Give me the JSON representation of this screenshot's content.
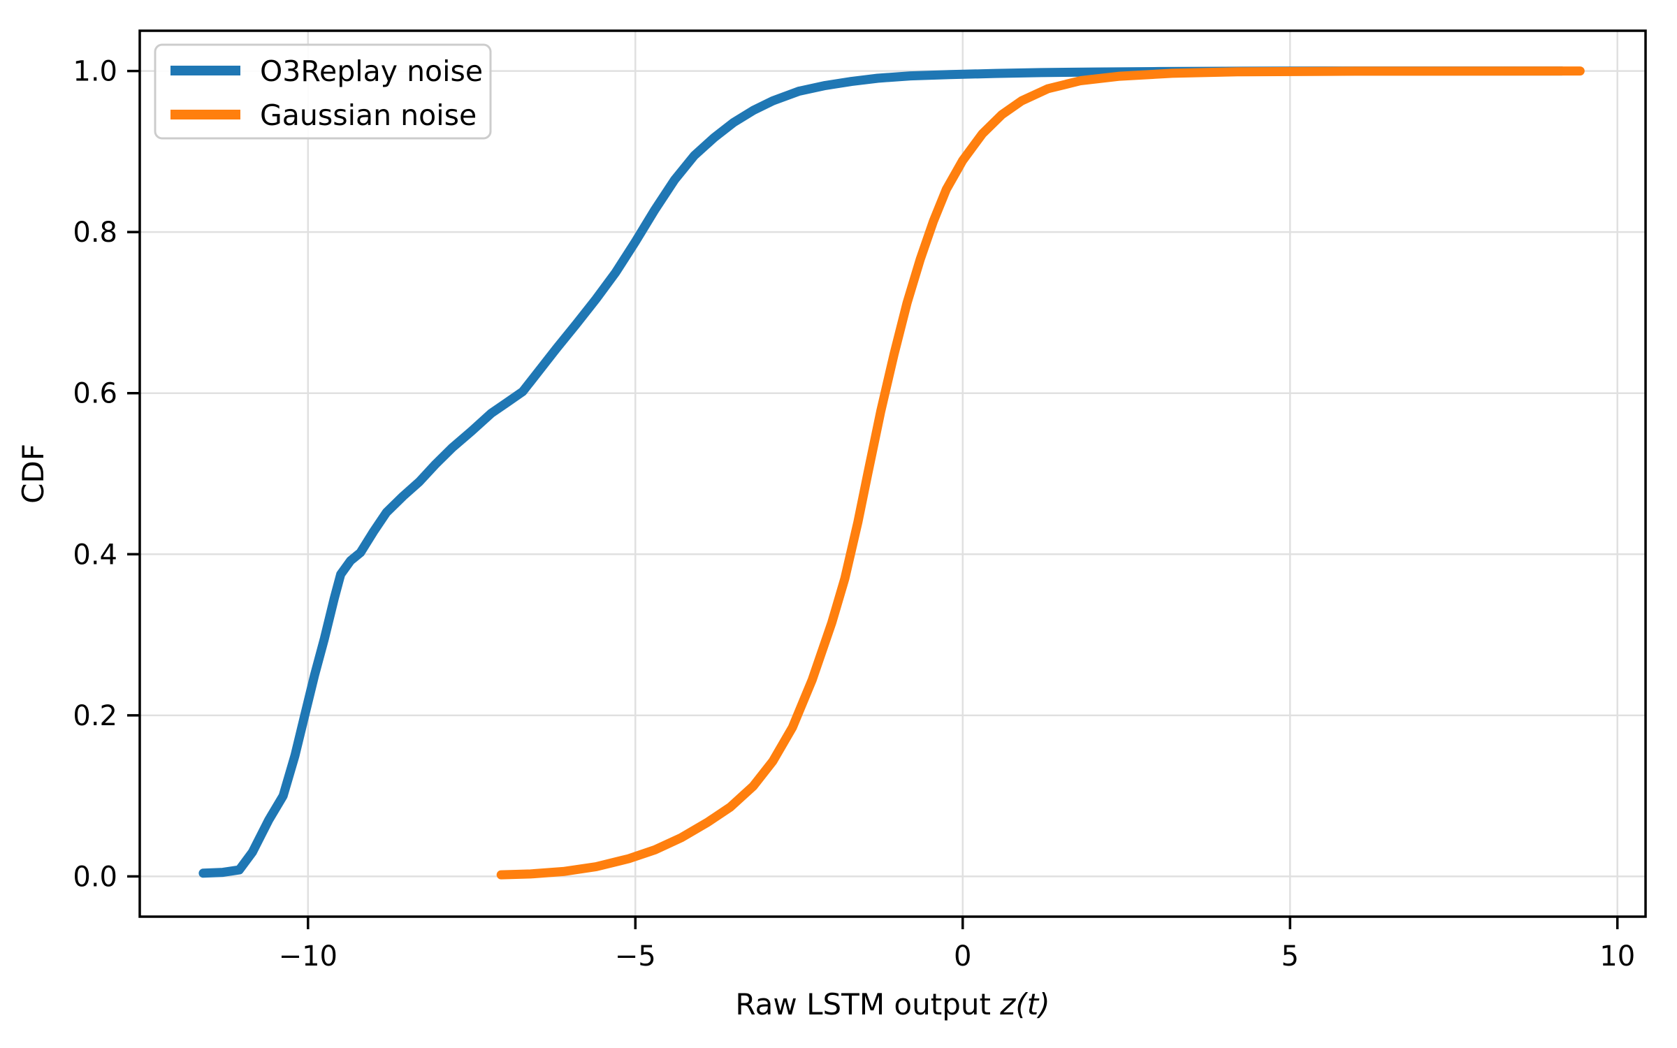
{
  "figure": {
    "background": "#ffffff",
    "spine_color": "#000000",
    "grid_color": "#e0e0e0",
    "tick_color": "#000000"
  },
  "chart_data": {
    "type": "line",
    "title": "",
    "xlabel_prefix": "Raw LSTM output ",
    "xlabel_math": "z(t)",
    "ylabel": "CDF",
    "xlim": [
      -12.57,
      10.43
    ],
    "ylim": [
      -0.05,
      1.05
    ],
    "x_ticks": [
      -10,
      -5,
      0,
      5,
      10
    ],
    "y_ticks": [
      0.0,
      0.2,
      0.4,
      0.6,
      0.8,
      1.0
    ],
    "grid": true,
    "legend_position": "upper-left",
    "legend": {
      "entries": [
        "O3Replay noise",
        "Gaussian noise"
      ]
    },
    "series": [
      {
        "name": "O3Replay noise",
        "color": "#1f77b4",
        "points": [
          [
            -11.6,
            0.004
          ],
          [
            -11.3,
            0.005
          ],
          [
            -11.05,
            0.008
          ],
          [
            -10.85,
            0.03
          ],
          [
            -10.6,
            0.07
          ],
          [
            -10.38,
            0.1
          ],
          [
            -10.2,
            0.15
          ],
          [
            -10.05,
            0.2
          ],
          [
            -9.9,
            0.25
          ],
          [
            -9.75,
            0.295
          ],
          [
            -9.6,
            0.345
          ],
          [
            -9.5,
            0.375
          ],
          [
            -9.35,
            0.392
          ],
          [
            -9.2,
            0.402
          ],
          [
            -9.0,
            0.428
          ],
          [
            -8.8,
            0.452
          ],
          [
            -8.55,
            0.472
          ],
          [
            -8.3,
            0.49
          ],
          [
            -8.05,
            0.512
          ],
          [
            -7.8,
            0.532
          ],
          [
            -7.5,
            0.553
          ],
          [
            -7.2,
            0.575
          ],
          [
            -6.95,
            0.589
          ],
          [
            -6.72,
            0.602
          ],
          [
            -6.45,
            0.63
          ],
          [
            -6.2,
            0.656
          ],
          [
            -5.9,
            0.686
          ],
          [
            -5.6,
            0.717
          ],
          [
            -5.3,
            0.75
          ],
          [
            -5.0,
            0.788
          ],
          [
            -4.7,
            0.828
          ],
          [
            -4.4,
            0.865
          ],
          [
            -4.1,
            0.895
          ],
          [
            -3.8,
            0.917
          ],
          [
            -3.5,
            0.936
          ],
          [
            -3.2,
            0.951
          ],
          [
            -2.9,
            0.963
          ],
          [
            -2.5,
            0.975
          ],
          [
            -2.1,
            0.982
          ],
          [
            -1.7,
            0.987
          ],
          [
            -1.3,
            0.991
          ],
          [
            -0.8,
            0.994
          ],
          [
            -0.2,
            0.9955
          ],
          [
            0.5,
            0.997
          ],
          [
            1.2,
            0.998
          ],
          [
            2.0,
            0.9987
          ],
          [
            3.0,
            0.9993
          ],
          [
            4.0,
            0.9997
          ],
          [
            5.5,
            1.0
          ],
          [
            9.15,
            1.0
          ]
        ]
      },
      {
        "name": "Gaussian noise",
        "color": "#ff7f0e",
        "points": [
          [
            -7.05,
            0.002
          ],
          [
            -6.6,
            0.003
          ],
          [
            -6.1,
            0.006
          ],
          [
            -5.6,
            0.012
          ],
          [
            -5.1,
            0.022
          ],
          [
            -4.7,
            0.033
          ],
          [
            -4.3,
            0.048
          ],
          [
            -3.9,
            0.067
          ],
          [
            -3.55,
            0.086
          ],
          [
            -3.2,
            0.112
          ],
          [
            -2.9,
            0.143
          ],
          [
            -2.6,
            0.185
          ],
          [
            -2.3,
            0.244
          ],
          [
            -2.0,
            0.315
          ],
          [
            -1.8,
            0.37
          ],
          [
            -1.6,
            0.44
          ],
          [
            -1.45,
            0.5
          ],
          [
            -1.25,
            0.578
          ],
          [
            -1.05,
            0.648
          ],
          [
            -0.85,
            0.712
          ],
          [
            -0.65,
            0.766
          ],
          [
            -0.45,
            0.813
          ],
          [
            -0.25,
            0.853
          ],
          [
            0.0,
            0.889
          ],
          [
            0.3,
            0.922
          ],
          [
            0.6,
            0.946
          ],
          [
            0.9,
            0.963
          ],
          [
            1.3,
            0.978
          ],
          [
            1.8,
            0.988
          ],
          [
            2.4,
            0.9935
          ],
          [
            3.2,
            0.9972
          ],
          [
            4.2,
            0.999
          ],
          [
            6.0,
            0.9998
          ],
          [
            9.43,
            1.0
          ]
        ]
      }
    ]
  }
}
